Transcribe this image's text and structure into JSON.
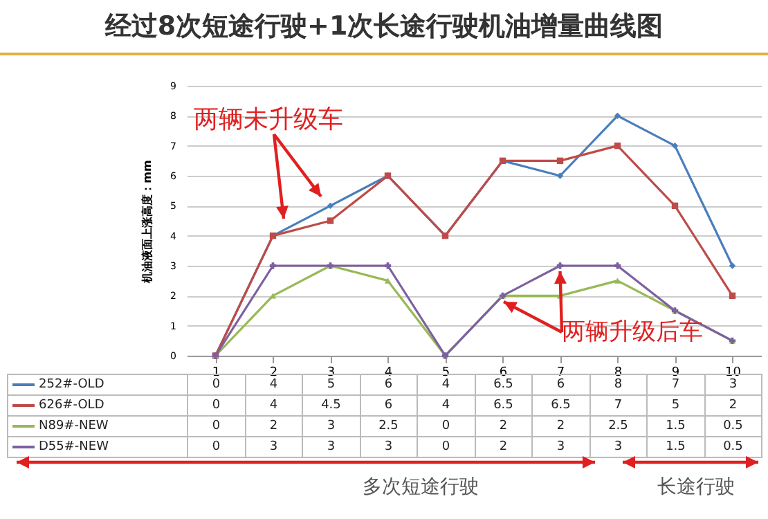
{
  "chart_data": {
    "type": "line",
    "title": "经过8次短途行驶+1次长途行驶机油增量曲线图",
    "ylabel": "机油液面上涨高度：mm",
    "categories": [
      "1",
      "2",
      "3",
      "4",
      "5",
      "6",
      "7",
      "8",
      "9",
      "10"
    ],
    "series": [
      {
        "name": "252#-OLD",
        "color": "#4a7ebb",
        "marker": "diamond",
        "values": [
          0,
          4,
          5,
          6,
          4,
          6.5,
          6,
          8,
          7,
          3
        ]
      },
      {
        "name": "626#-OLD",
        "color": "#be4b48",
        "marker": "square",
        "values": [
          0,
          4,
          4.5,
          6,
          4,
          6.5,
          6.5,
          7,
          5,
          2
        ]
      },
      {
        "name": "N89#-NEW",
        "color": "#98b954",
        "marker": "triangle",
        "values": [
          0,
          2,
          3,
          2.5,
          0,
          2,
          2,
          2.5,
          1.5,
          0.5
        ]
      },
      {
        "name": "D55#-NEW",
        "color": "#7d60a0",
        "marker": "cross",
        "values": [
          0,
          3,
          3,
          3,
          0,
          2,
          3,
          3,
          1.5,
          0.5
        ]
      }
    ],
    "ylim": [
      0,
      9
    ],
    "yticks": [
      0,
      1,
      2,
      3,
      4,
      5,
      6,
      7,
      8,
      9
    ],
    "grid": "y",
    "data_labels": true,
    "legend": "bottom",
    "annotations": [
      "两辆未升级车",
      {
        "text": "两辆升级后车",
        "x": "7",
        "y": 3
      },
      "多次短途行驶",
      "长途行驶"
    ]
  }
}
